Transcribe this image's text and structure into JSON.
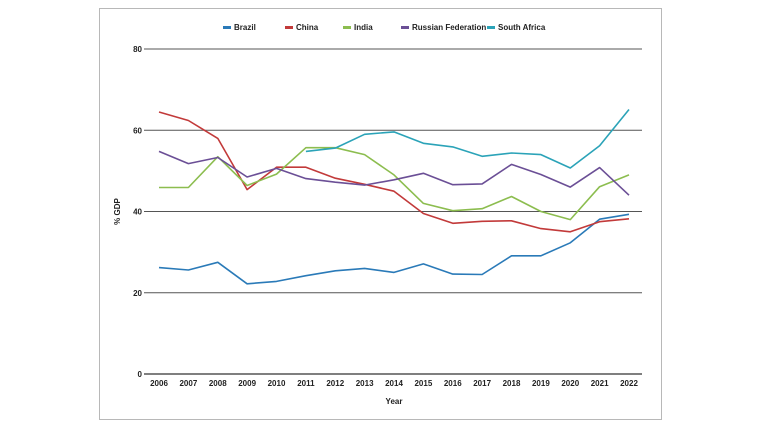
{
  "chart_data": {
    "type": "line",
    "title": "",
    "xlabel": "Year",
    "ylabel": "% GDP",
    "ylim": [
      0,
      80
    ],
    "yticks": [
      "0",
      "20",
      "40",
      "60",
      "80"
    ],
    "grid": true,
    "legend_position": "top",
    "x": [
      "2006",
      "2007",
      "2008",
      "2009",
      "2010",
      "2011",
      "2012",
      "2013",
      "2014",
      "2015",
      "2016",
      "2017",
      "2018",
      "2019",
      "2020",
      "2021",
      "2022"
    ],
    "series": [
      {
        "name": "Brazil",
        "color": "#2a7ab8",
        "values": [
          26.2,
          25.6,
          27.5,
          22.2,
          22.8,
          24.2,
          25.4,
          26.0,
          25.0,
          27.1,
          24.6,
          24.5,
          29.1,
          29.1,
          32.3,
          38.1,
          39.3
        ]
      },
      {
        "name": "China",
        "color": "#c23a3a",
        "values": [
          64.5,
          62.4,
          58.0,
          45.4,
          50.9,
          50.9,
          48.2,
          46.7,
          45.0,
          39.5,
          37.1,
          37.6,
          37.7,
          35.8,
          35.0,
          37.5,
          38.2
        ]
      },
      {
        "name": "India",
        "color": "#8cbd4f",
        "values": [
          45.9,
          45.9,
          53.5,
          46.4,
          49.2,
          55.7,
          55.7,
          54.0,
          49.0,
          42.0,
          40.2,
          40.7,
          43.7,
          40.0,
          38.0,
          46.1,
          49.0
        ]
      },
      {
        "name": "Russian Federation",
        "color": "#6b4f96",
        "values": [
          54.8,
          51.8,
          53.3,
          48.5,
          50.6,
          48.1,
          47.2,
          46.5,
          47.8,
          49.4,
          46.6,
          46.8,
          51.6,
          49.1,
          46.0,
          50.8,
          44.0
        ]
      },
      {
        "name": "South Africa",
        "color": "#2ba3b8",
        "values": [
          null,
          null,
          null,
          null,
          null,
          54.8,
          55.6,
          59.0,
          59.6,
          56.8,
          55.9,
          53.6,
          54.4,
          54.0,
          50.7,
          56.2,
          65.1
        ]
      }
    ]
  }
}
